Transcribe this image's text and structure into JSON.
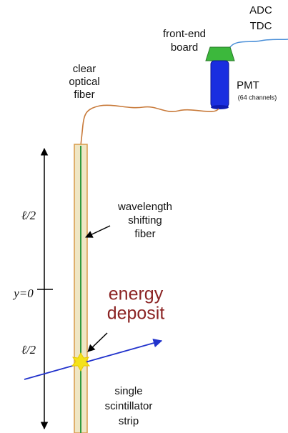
{
  "readout": {
    "adc": "ADC",
    "tdc": "TDC",
    "board": [
      "front-end",
      "board"
    ],
    "pmt": "PMT",
    "pmt_channels": "(64 channels)"
  },
  "fiber_label": [
    "clear",
    "optical",
    "fiber"
  ],
  "wls_label": [
    "wavelength",
    "shifting",
    "fiber"
  ],
  "axis": {
    "upper_half": "ℓ/2",
    "zero": "y=0",
    "lower_half": "ℓ/2"
  },
  "deposit_label": [
    "energy",
    "deposit"
  ],
  "strip_label": [
    "single",
    "scintillator",
    "strip"
  ]
}
